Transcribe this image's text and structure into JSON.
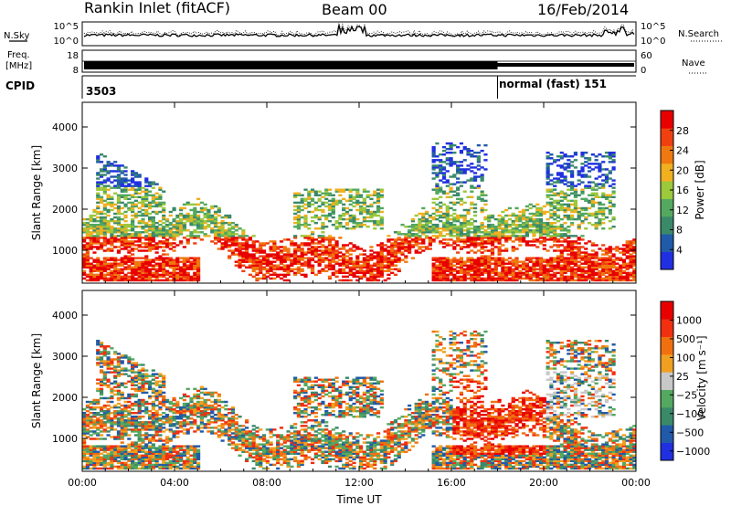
{
  "header": {
    "site": "Rankin Inlet (fitACF)",
    "beam": "Beam 00",
    "date": "16/Feb/2014"
  },
  "status_panels": {
    "nsky_label": "N.Sky",
    "nsearch_label": "N.Search",
    "noise_ticks": [
      "10^5",
      "10^0"
    ],
    "freq_label_1": "Freq.",
    "freq_label_2": "[MHz]",
    "freq_ticks": [
      "18",
      "8"
    ],
    "nave_label": "Nave",
    "nave_ticks": [
      "60",
      "0"
    ],
    "cpid_label": "CPID",
    "cpid_1": "3503",
    "cpid_2": "normal (fast) 151",
    "cpid_switch_hour": 18.0
  },
  "colors": {
    "power_scale": [
      "#2030e0",
      "#205aa8",
      "#3a8a6a",
      "#54a860",
      "#9cc83c",
      "#f0b020",
      "#f07810",
      "#f04010",
      "#e80000"
    ],
    "velocity_scale": [
      "#2030e0",
      "#205aa8",
      "#3a8a6a",
      "#54a860",
      "#c8c8c8",
      "#f0a020",
      "#f07010",
      "#f03010",
      "#e80000"
    ]
  },
  "chart_data": [
    {
      "type": "heatmap",
      "name": "power",
      "ylabel": "Slant Range [km]",
      "xlabel": "",
      "x_ticks": [
        "00:00",
        "04:00",
        "08:00",
        "12:00",
        "16:00",
        "20:00",
        "00:00"
      ],
      "x_range_hours": [
        0,
        24
      ],
      "y_ticks": [
        1000,
        2000,
        3000,
        4000
      ],
      "ylim": [
        200,
        4600
      ],
      "colorbar_label": "Power [dB]",
      "colorbar_ticks": [
        "28",
        "24",
        "20",
        "16",
        "12",
        "8",
        "4"
      ]
    },
    {
      "type": "heatmap",
      "name": "velocity",
      "ylabel": "Slant Range [km]",
      "xlabel": "Time UT",
      "x_ticks": [
        "00:00",
        "04:00",
        "08:00",
        "12:00",
        "16:00",
        "20:00",
        "00:00"
      ],
      "x_range_hours": [
        0,
        24
      ],
      "y_ticks": [
        1000,
        2000,
        3000,
        4000
      ],
      "ylim": [
        200,
        4600
      ],
      "colorbar_label": "Velocity [m s⁻¹]",
      "colorbar_ticks": [
        "1000",
        "500",
        "100",
        "25",
        "−25",
        "−100",
        "−500",
        "−1000"
      ]
    }
  ]
}
